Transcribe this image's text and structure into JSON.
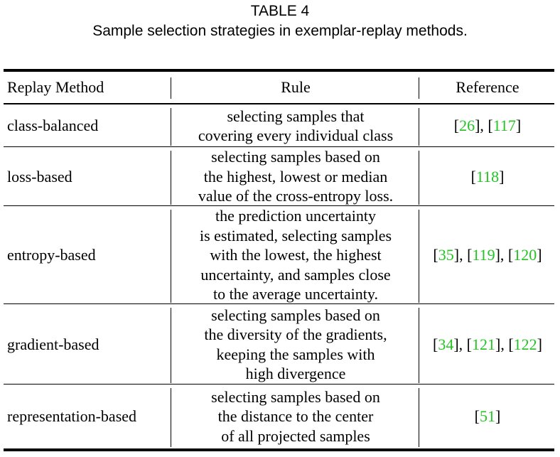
{
  "caption": {
    "label": "TABLE 4",
    "title": "Sample selection strategies in exemplar-replay methods."
  },
  "table": {
    "headers": [
      "Replay Method",
      "Rule",
      "Reference"
    ],
    "rows": [
      {
        "method": "class-balanced",
        "rule_lines": [
          "selecting samples that",
          "covering every individual class"
        ],
        "refs": [
          "26",
          "117"
        ]
      },
      {
        "method": "loss-based",
        "rule_lines": [
          "selecting samples based on",
          "the highest, lowest or median",
          "value of the cross-entropy loss."
        ],
        "refs": [
          "118"
        ]
      },
      {
        "method": "entropy-based",
        "rule_lines": [
          "the prediction uncertainty",
          "is estimated, selecting samples",
          "with the lowest, the highest",
          "uncertainty, and samples close",
          "to the average uncertainty."
        ],
        "refs": [
          "35",
          "119",
          "120"
        ]
      },
      {
        "method": "gradient-based",
        "rule_lines": [
          "selecting samples based on",
          "the diversity of the gradients,",
          "keeping the samples with",
          "high divergence"
        ],
        "refs": [
          "34",
          "121",
          "122"
        ]
      },
      {
        "method": "representation-based",
        "rule_lines": [
          "selecting samples based on",
          "the distance to the center",
          "of all projected samples"
        ],
        "refs": [
          "51"
        ]
      }
    ]
  },
  "colors": {
    "citation": "#22c322",
    "text": "#000000"
  }
}
